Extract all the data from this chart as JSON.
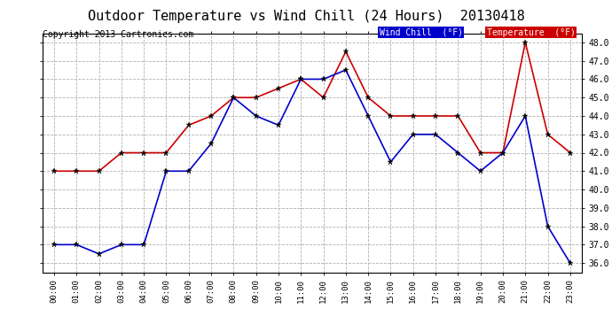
{
  "title": "Outdoor Temperature vs Wind Chill (24 Hours)  20130418",
  "copyright": "Copyright 2013 Cartronics.com",
  "hours": [
    "00:00",
    "01:00",
    "02:00",
    "03:00",
    "04:00",
    "05:00",
    "06:00",
    "07:00",
    "08:00",
    "09:00",
    "10:00",
    "11:00",
    "12:00",
    "13:00",
    "14:00",
    "15:00",
    "16:00",
    "17:00",
    "18:00",
    "19:00",
    "20:00",
    "21:00",
    "22:00",
    "23:00"
  ],
  "temperature": [
    41.0,
    41.0,
    41.0,
    42.0,
    42.0,
    42.0,
    43.5,
    44.0,
    45.0,
    45.0,
    45.5,
    46.0,
    45.0,
    47.5,
    45.0,
    44.0,
    44.0,
    44.0,
    44.0,
    42.0,
    42.0,
    48.0,
    43.0,
    42.0
  ],
  "wind_chill": [
    37.0,
    37.0,
    36.5,
    37.0,
    37.0,
    41.0,
    41.0,
    42.5,
    45.0,
    44.0,
    43.5,
    46.0,
    46.0,
    46.5,
    44.0,
    41.5,
    43.0,
    43.0,
    42.0,
    41.0,
    42.0,
    44.0,
    38.0,
    36.0
  ],
  "temp_color": "#cc0000",
  "wind_chill_color": "#0000cc",
  "ylim": [
    35.5,
    48.5
  ],
  "yticks": [
    36.0,
    37.0,
    38.0,
    39.0,
    40.0,
    41.0,
    42.0,
    43.0,
    44.0,
    45.0,
    46.0,
    47.0,
    48.0
  ],
  "bg_color": "#ffffff",
  "grid_color": "#b0b0b0",
  "title_fontsize": 11,
  "copyright_fontsize": 7,
  "legend_wind_chill_bg": "#0000cc",
  "legend_temp_bg": "#cc0000",
  "legend_wind_chill_label": "Wind Chill  (°F)",
  "legend_temp_label": "Temperature  (°F)"
}
